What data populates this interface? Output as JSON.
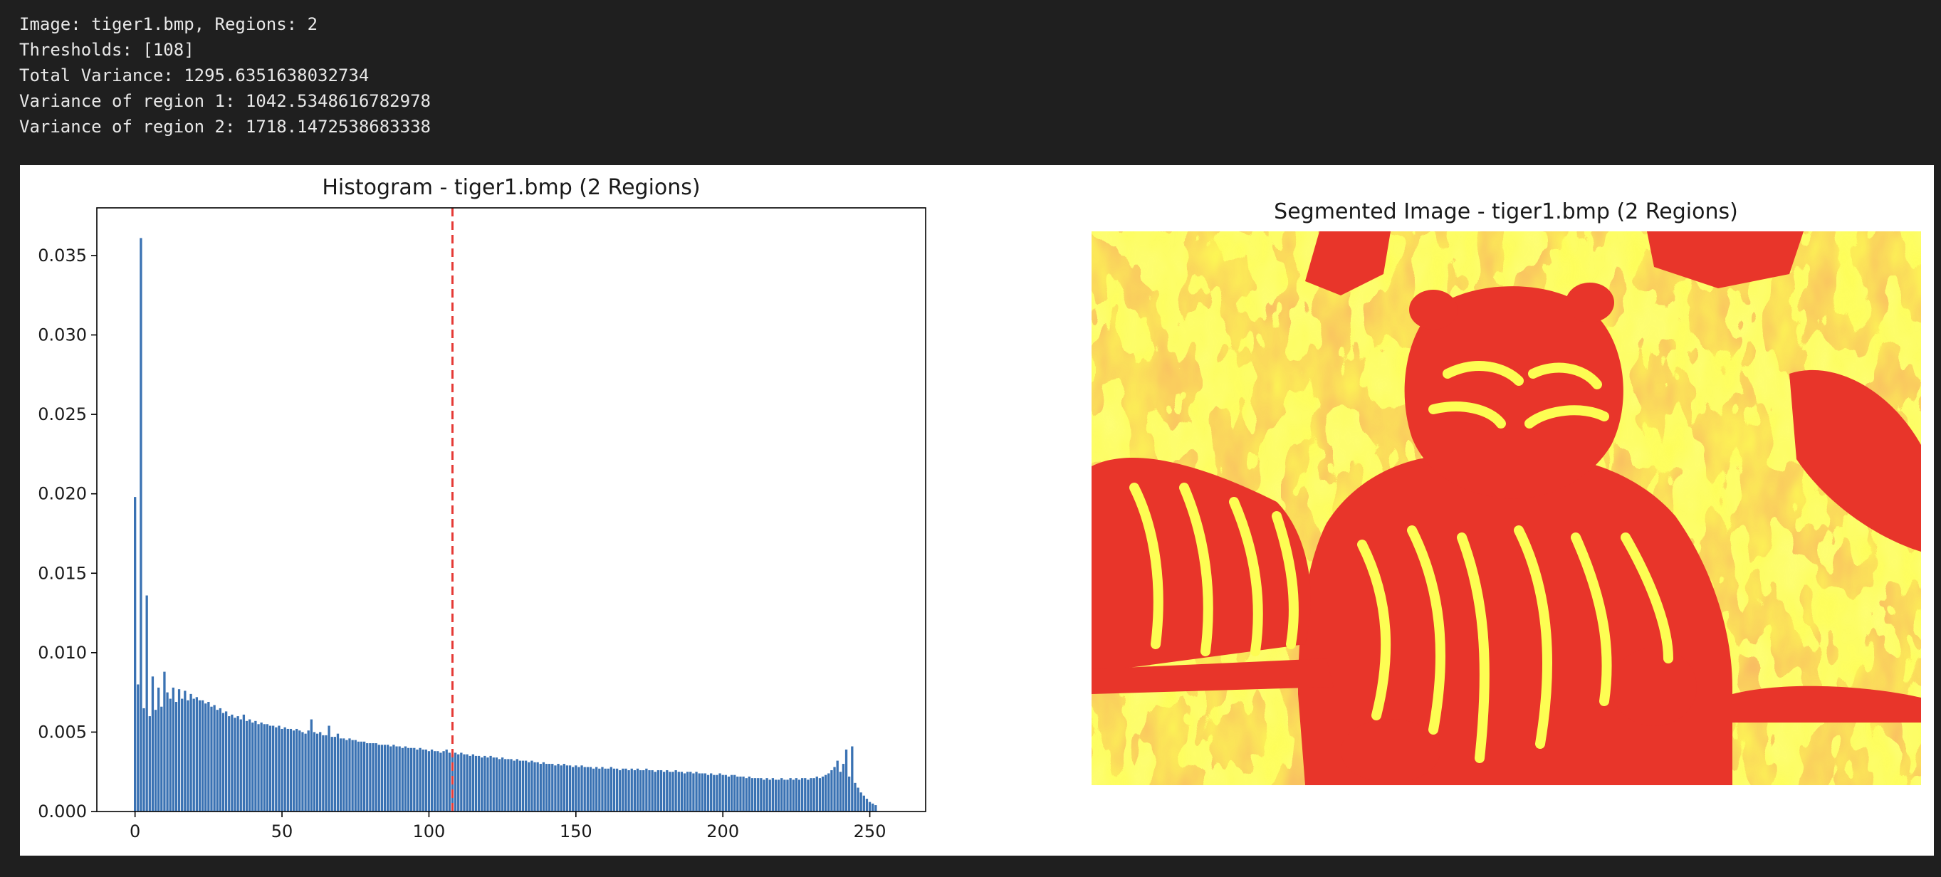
{
  "console": {
    "lines": [
      "Image: tiger1.bmp, Regions: 2",
      "Thresholds: [108]",
      "Total Variance: 1295.6351638032734",
      "Variance of region 1: 1042.5348616782978",
      "Variance of region 2: 1718.1472538683338"
    ]
  },
  "colors": {
    "bar": "#3a72b3",
    "threshold_line": "#e53935",
    "segment_dark": "#e8352a",
    "segment_light": "#fdfd53"
  },
  "chart_data": [
    {
      "type": "bar",
      "title": "Histogram - tiger1.bmp (2 Regions)",
      "xlabel": "",
      "ylabel": "",
      "xlim": [
        -13,
        269
      ],
      "ylim": [
        0,
        0.038
      ],
      "xticks": [
        0,
        50,
        100,
        150,
        200,
        250
      ],
      "yticks": [
        "0.000",
        "0.005",
        "0.010",
        "0.015",
        "0.020",
        "0.025",
        "0.030",
        "0.035"
      ],
      "threshold": 108,
      "x_start": 0,
      "values": [
        0.0198,
        0.008,
        0.0361,
        0.0065,
        0.0136,
        0.006,
        0.0085,
        0.0064,
        0.0078,
        0.0066,
        0.0088,
        0.0075,
        0.0071,
        0.0078,
        0.0069,
        0.0077,
        0.0071,
        0.0076,
        0.007,
        0.0074,
        0.0071,
        0.0072,
        0.007,
        0.007,
        0.0068,
        0.0069,
        0.0066,
        0.0067,
        0.0064,
        0.0065,
        0.0062,
        0.0063,
        0.006,
        0.0061,
        0.0059,
        0.006,
        0.0058,
        0.0061,
        0.0057,
        0.0058,
        0.0056,
        0.0057,
        0.0055,
        0.0056,
        0.0055,
        0.0055,
        0.0054,
        0.0054,
        0.0053,
        0.0054,
        0.0052,
        0.0053,
        0.0052,
        0.0052,
        0.0051,
        0.0052,
        0.0051,
        0.005,
        0.0049,
        0.0051,
        0.0058,
        0.005,
        0.0049,
        0.005,
        0.0048,
        0.0048,
        0.0054,
        0.0047,
        0.0047,
        0.0049,
        0.0046,
        0.0046,
        0.0045,
        0.0046,
        0.0045,
        0.0045,
        0.0044,
        0.0044,
        0.0044,
        0.0043,
        0.0043,
        0.0043,
        0.0043,
        0.0042,
        0.0042,
        0.0042,
        0.0042,
        0.0041,
        0.0042,
        0.0041,
        0.0041,
        0.004,
        0.0041,
        0.004,
        0.004,
        0.004,
        0.0039,
        0.004,
        0.0039,
        0.0039,
        0.0038,
        0.0039,
        0.0038,
        0.0038,
        0.0037,
        0.0038,
        0.0039,
        0.0037,
        0.0036,
        0.0037,
        0.0036,
        0.0037,
        0.0036,
        0.0036,
        0.0035,
        0.0036,
        0.0035,
        0.0035,
        0.0034,
        0.0035,
        0.0034,
        0.0035,
        0.0034,
        0.0034,
        0.0033,
        0.0034,
        0.0033,
        0.0033,
        0.0033,
        0.0032,
        0.0033,
        0.0032,
        0.0032,
        0.0032,
        0.0031,
        0.0032,
        0.0031,
        0.0031,
        0.003,
        0.0031,
        0.003,
        0.003,
        0.003,
        0.0029,
        0.003,
        0.0029,
        0.003,
        0.0029,
        0.0029,
        0.0028,
        0.0029,
        0.0028,
        0.0029,
        0.0028,
        0.0028,
        0.0028,
        0.0027,
        0.0028,
        0.0027,
        0.0028,
        0.0027,
        0.0027,
        0.0028,
        0.0027,
        0.0027,
        0.0026,
        0.0027,
        0.0027,
        0.0026,
        0.0027,
        0.0026,
        0.0027,
        0.0026,
        0.0026,
        0.0027,
        0.0026,
        0.0026,
        0.0025,
        0.0026,
        0.0026,
        0.0025,
        0.0026,
        0.0025,
        0.0025,
        0.0026,
        0.0025,
        0.0025,
        0.0024,
        0.0025,
        0.0025,
        0.0024,
        0.0025,
        0.0024,
        0.0024,
        0.0024,
        0.0023,
        0.0024,
        0.0023,
        0.0023,
        0.0024,
        0.0023,
        0.0023,
        0.0022,
        0.0023,
        0.0023,
        0.0022,
        0.0022,
        0.0022,
        0.0021,
        0.0022,
        0.0021,
        0.0021,
        0.0021,
        0.0021,
        0.002,
        0.0021,
        0.002,
        0.0021,
        0.002,
        0.002,
        0.0021,
        0.002,
        0.002,
        0.0021,
        0.002,
        0.0021,
        0.002,
        0.0021,
        0.0021,
        0.002,
        0.0021,
        0.0021,
        0.0022,
        0.0021,
        0.0022,
        0.0023,
        0.0024,
        0.0026,
        0.0028,
        0.0032,
        0.0025,
        0.003,
        0.0039,
        0.0022,
        0.0041,
        0.0018,
        0.0015,
        0.0012,
        0.001,
        0.0008,
        0.0006,
        0.0005,
        0.0004
      ]
    },
    {
      "type": "image",
      "title": "Segmented Image - tiger1.bmp (2 Regions)",
      "regions": 2
    }
  ]
}
